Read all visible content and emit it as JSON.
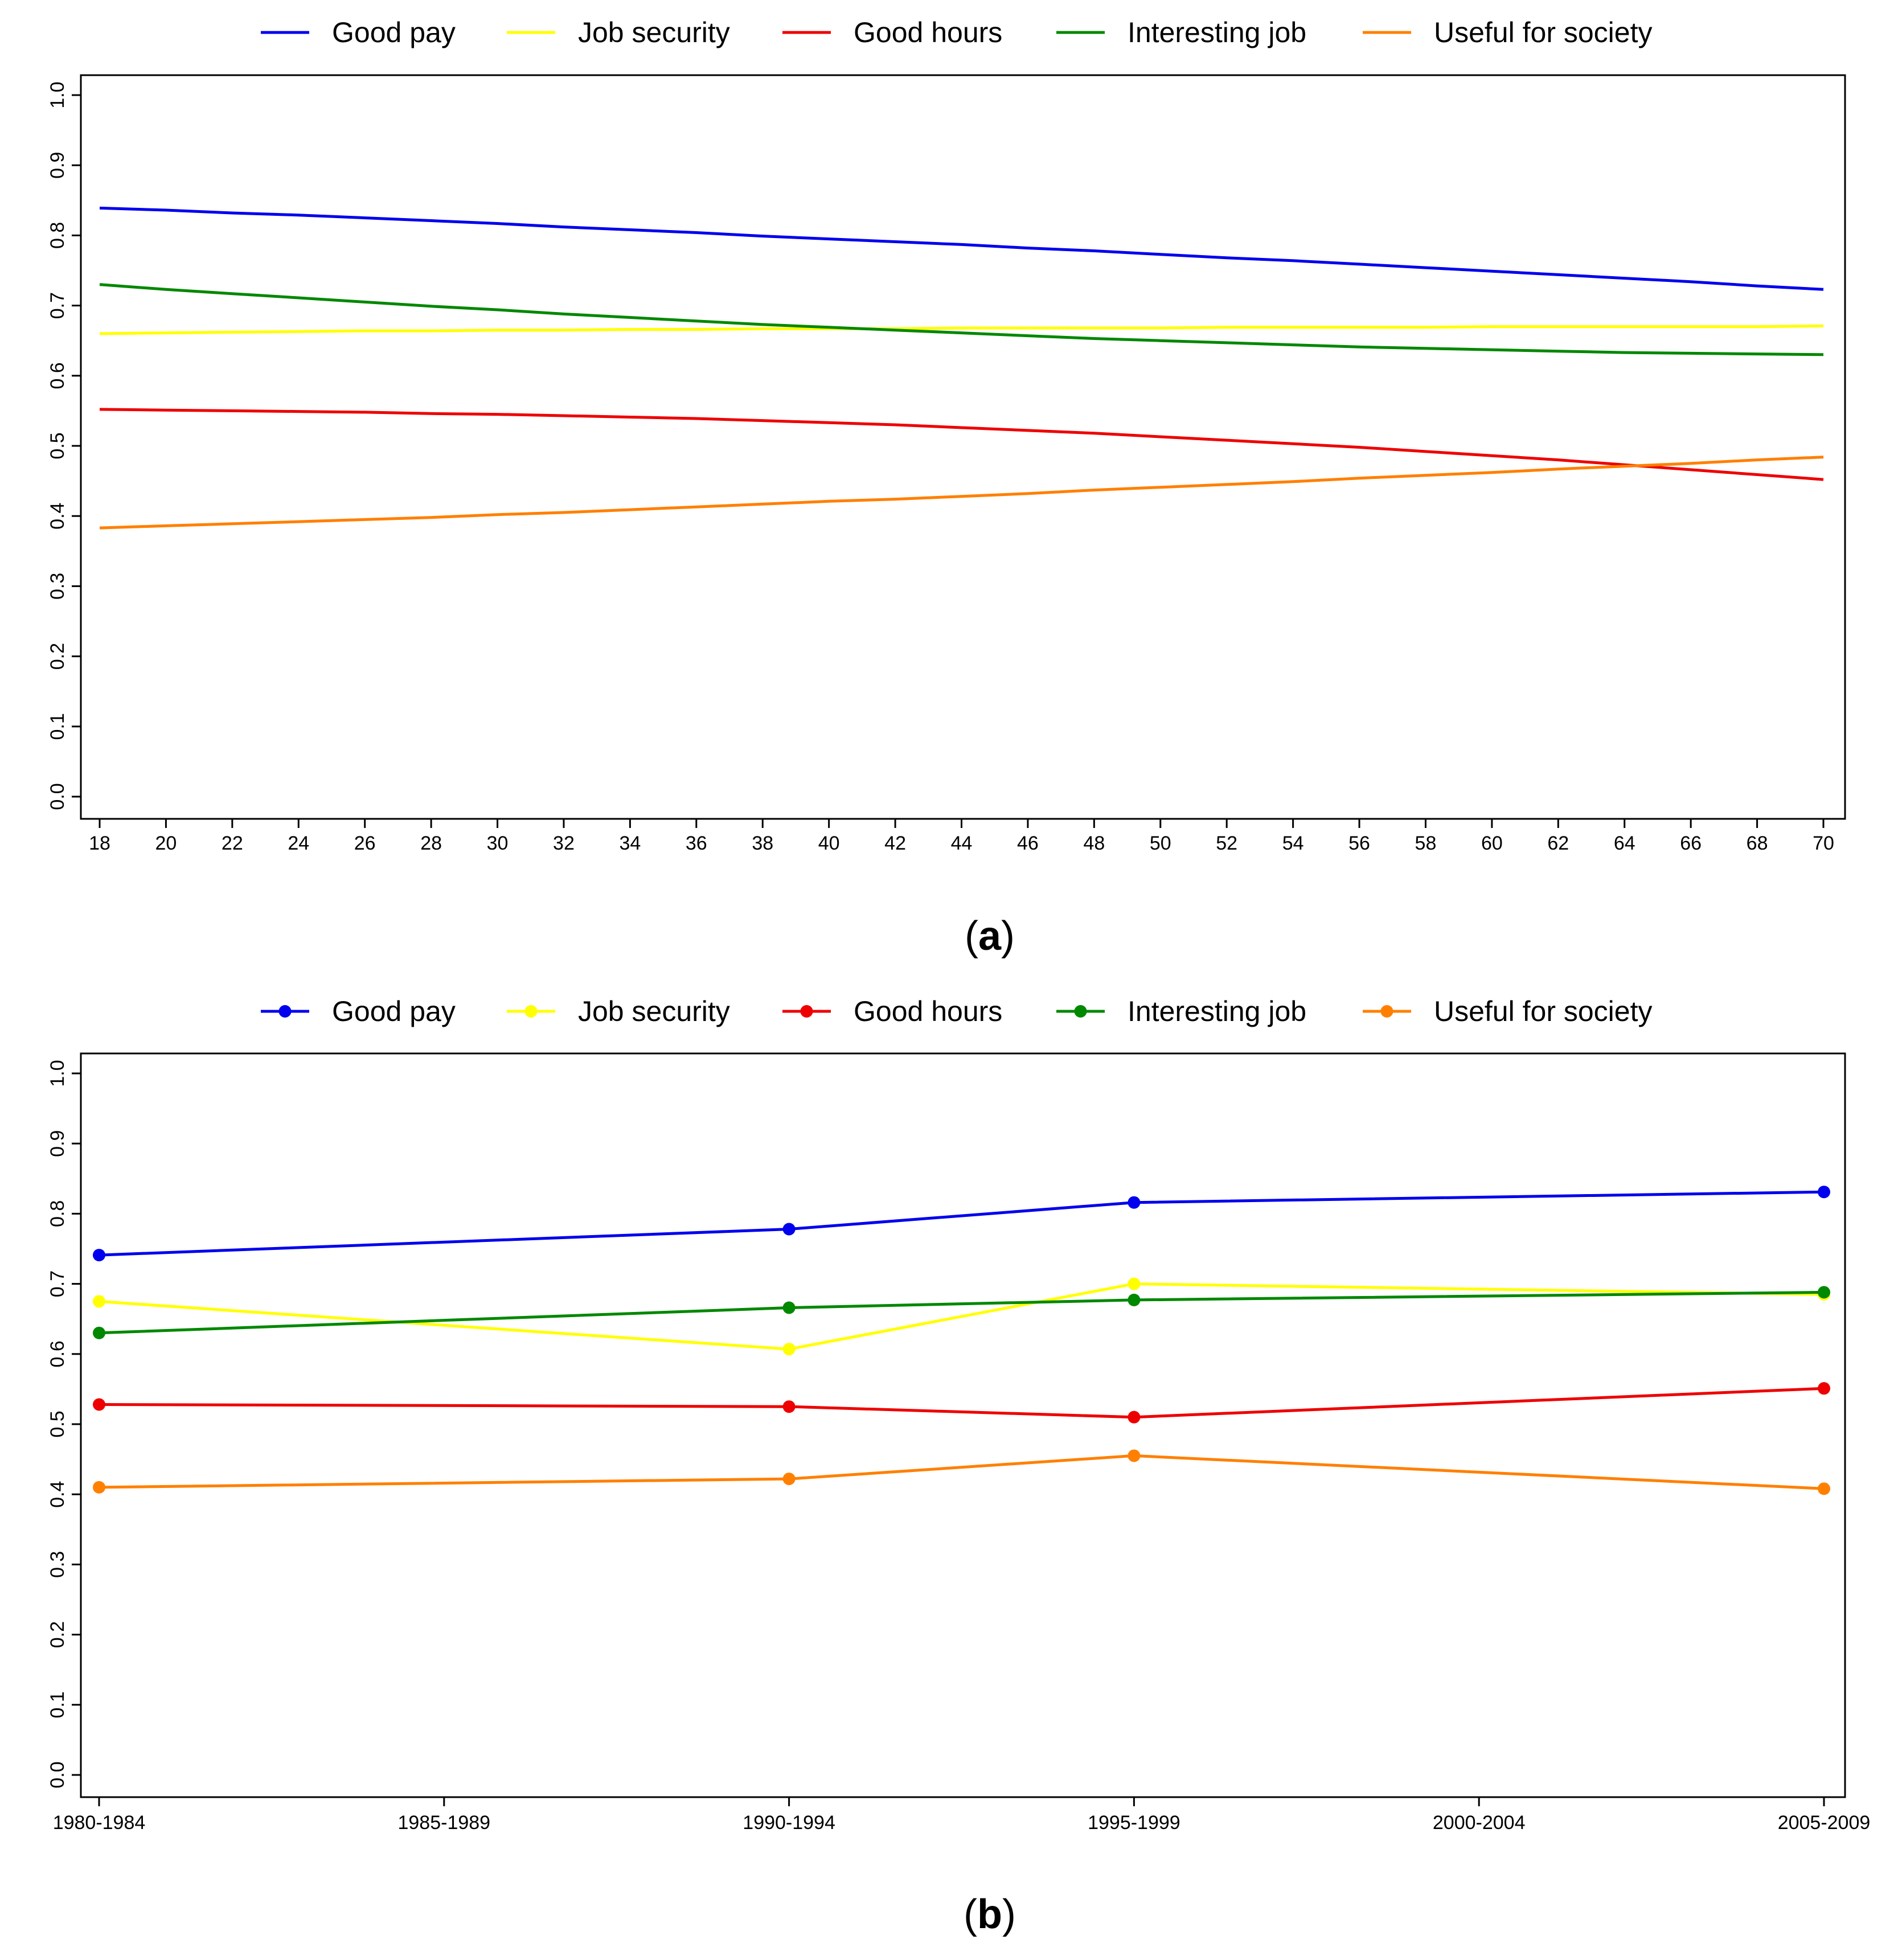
{
  "chart_data": [
    {
      "type": "line",
      "panel_label": "a",
      "x": [
        18,
        20,
        22,
        24,
        26,
        28,
        30,
        32,
        34,
        36,
        38,
        40,
        42,
        44,
        46,
        48,
        50,
        52,
        54,
        56,
        58,
        60,
        62,
        64,
        66,
        68,
        70
      ],
      "xticks": [
        "18",
        "20",
        "22",
        "24",
        "26",
        "28",
        "30",
        "32",
        "34",
        "36",
        "38",
        "40",
        "42",
        "44",
        "46",
        "48",
        "50",
        "52",
        "54",
        "56",
        "58",
        "60",
        "62",
        "64",
        "66",
        "68",
        "70"
      ],
      "xlim": [
        18,
        70
      ],
      "yticks": [
        "0.0",
        "0.1",
        "0.2",
        "0.3",
        "0.4",
        "0.5",
        "0.6",
        "0.7",
        "0.8",
        "0.9",
        "1.0"
      ],
      "ylim": [
        0,
        1
      ],
      "markers": false,
      "legend_position": "top",
      "series": [
        {
          "name": "Good pay",
          "color": "#0000ee",
          "values": [
            0.839,
            0.836,
            0.832,
            0.829,
            0.825,
            0.821,
            0.817,
            0.812,
            0.808,
            0.804,
            0.799,
            0.795,
            0.791,
            0.787,
            0.782,
            0.778,
            0.773,
            0.768,
            0.764,
            0.759,
            0.754,
            0.749,
            0.744,
            0.739,
            0.734,
            0.728,
            0.723
          ]
        },
        {
          "name": "Job security",
          "color": "#ffff00",
          "values": [
            0.66,
            0.661,
            0.662,
            0.663,
            0.664,
            0.664,
            0.665,
            0.665,
            0.666,
            0.666,
            0.667,
            0.667,
            0.667,
            0.668,
            0.668,
            0.668,
            0.668,
            0.669,
            0.669,
            0.669,
            0.669,
            0.67,
            0.67,
            0.67,
            0.67,
            0.67,
            0.671
          ]
        },
        {
          "name": "Good hours",
          "color": "#ee0000",
          "values": [
            0.552,
            0.551,
            0.55,
            0.549,
            0.548,
            0.546,
            0.545,
            0.543,
            0.541,
            0.539,
            0.536,
            0.533,
            0.53,
            0.526,
            0.522,
            0.518,
            0.513,
            0.508,
            0.503,
            0.498,
            0.492,
            0.486,
            0.48,
            0.473,
            0.466,
            0.459,
            0.452
          ]
        },
        {
          "name": "Interesting job",
          "color": "#008800",
          "values": [
            0.73,
            0.723,
            0.717,
            0.711,
            0.705,
            0.699,
            0.694,
            0.688,
            0.683,
            0.678,
            0.673,
            0.669,
            0.665,
            0.661,
            0.657,
            0.653,
            0.65,
            0.647,
            0.644,
            0.641,
            0.639,
            0.637,
            0.635,
            0.633,
            0.632,
            0.631,
            0.63
          ]
        },
        {
          "name": "Useful for society",
          "color": "#ff8000",
          "values": [
            0.383,
            0.386,
            0.389,
            0.392,
            0.395,
            0.398,
            0.402,
            0.405,
            0.409,
            0.413,
            0.417,
            0.421,
            0.424,
            0.428,
            0.432,
            0.437,
            0.441,
            0.445,
            0.449,
            0.454,
            0.458,
            0.462,
            0.467,
            0.471,
            0.475,
            0.48,
            0.484
          ]
        }
      ]
    },
    {
      "type": "line",
      "panel_label": "b",
      "categories": [
        "1980-1984",
        "1985-1989",
        "1990-1994",
        "1995-1999",
        "2000-2004",
        "2005-2009"
      ],
      "yticks": [
        "0.0",
        "0.1",
        "0.2",
        "0.3",
        "0.4",
        "0.5",
        "0.6",
        "0.7",
        "0.8",
        "0.9",
        "1.0"
      ],
      "ylim": [
        0,
        1
      ],
      "markers": true,
      "legend_position": "top",
      "series": [
        {
          "name": "Good pay",
          "color": "#0000ee",
          "values": [
            0.741,
            null,
            0.778,
            0.816,
            null,
            0.831
          ]
        },
        {
          "name": "Job security",
          "color": "#ffff00",
          "values": [
            0.675,
            null,
            0.607,
            0.7,
            null,
            0.685
          ]
        },
        {
          "name": "Good hours",
          "color": "#ee0000",
          "values": [
            0.528,
            null,
            0.525,
            0.51,
            null,
            0.551
          ]
        },
        {
          "name": "Interesting job",
          "color": "#008800",
          "values": [
            0.63,
            null,
            0.666,
            0.677,
            null,
            0.688
          ]
        },
        {
          "name": "Useful for society",
          "color": "#ff8000",
          "values": [
            0.41,
            null,
            0.422,
            0.455,
            null,
            0.408
          ]
        }
      ]
    }
  ]
}
